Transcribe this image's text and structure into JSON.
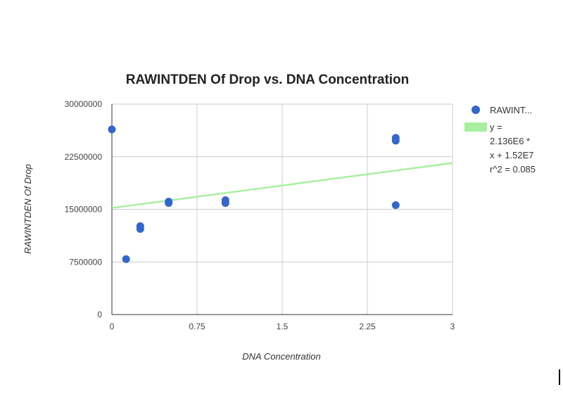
{
  "chart_data": {
    "type": "scatter",
    "title": "RAWINTDEN Of Drop vs. DNA Concentration",
    "xlabel": "DNA Concentration",
    "ylabel": "RAWINTDEN Of Drop",
    "xlim": [
      0,
      3
    ],
    "ylim": [
      0,
      30000000
    ],
    "x_ticks": [
      "0",
      "0.75",
      "1.5",
      "2.25",
      "3"
    ],
    "y_ticks": [
      "0",
      "7500000",
      "15000000",
      "22500000",
      "30000000"
    ],
    "grid": true,
    "legend_position": "right",
    "series": [
      {
        "name": "RAWINT...",
        "color": "#3366cc",
        "points": [
          {
            "x": 0,
            "y": 26400000
          },
          {
            "x": 0.125,
            "y": 7900000
          },
          {
            "x": 0.25,
            "y": 12200000
          },
          {
            "x": 0.25,
            "y": 12600000
          },
          {
            "x": 0.5,
            "y": 15900000
          },
          {
            "x": 0.5,
            "y": 16100000
          },
          {
            "x": 1,
            "y": 15900000
          },
          {
            "x": 1,
            "y": 16300000
          },
          {
            "x": 2.5,
            "y": 24800000
          },
          {
            "x": 2.5,
            "y": 25200000
          },
          {
            "x": 2.5,
            "y": 15600000
          }
        ]
      }
    ],
    "trendline": {
      "color": "#a8f0a0",
      "slope": 2136000,
      "intercept": 15200000,
      "legend_lines": [
        "y =",
        "2.136E6 *",
        "x + 1.52E7",
        "r^2 = 0.085"
      ]
    }
  }
}
